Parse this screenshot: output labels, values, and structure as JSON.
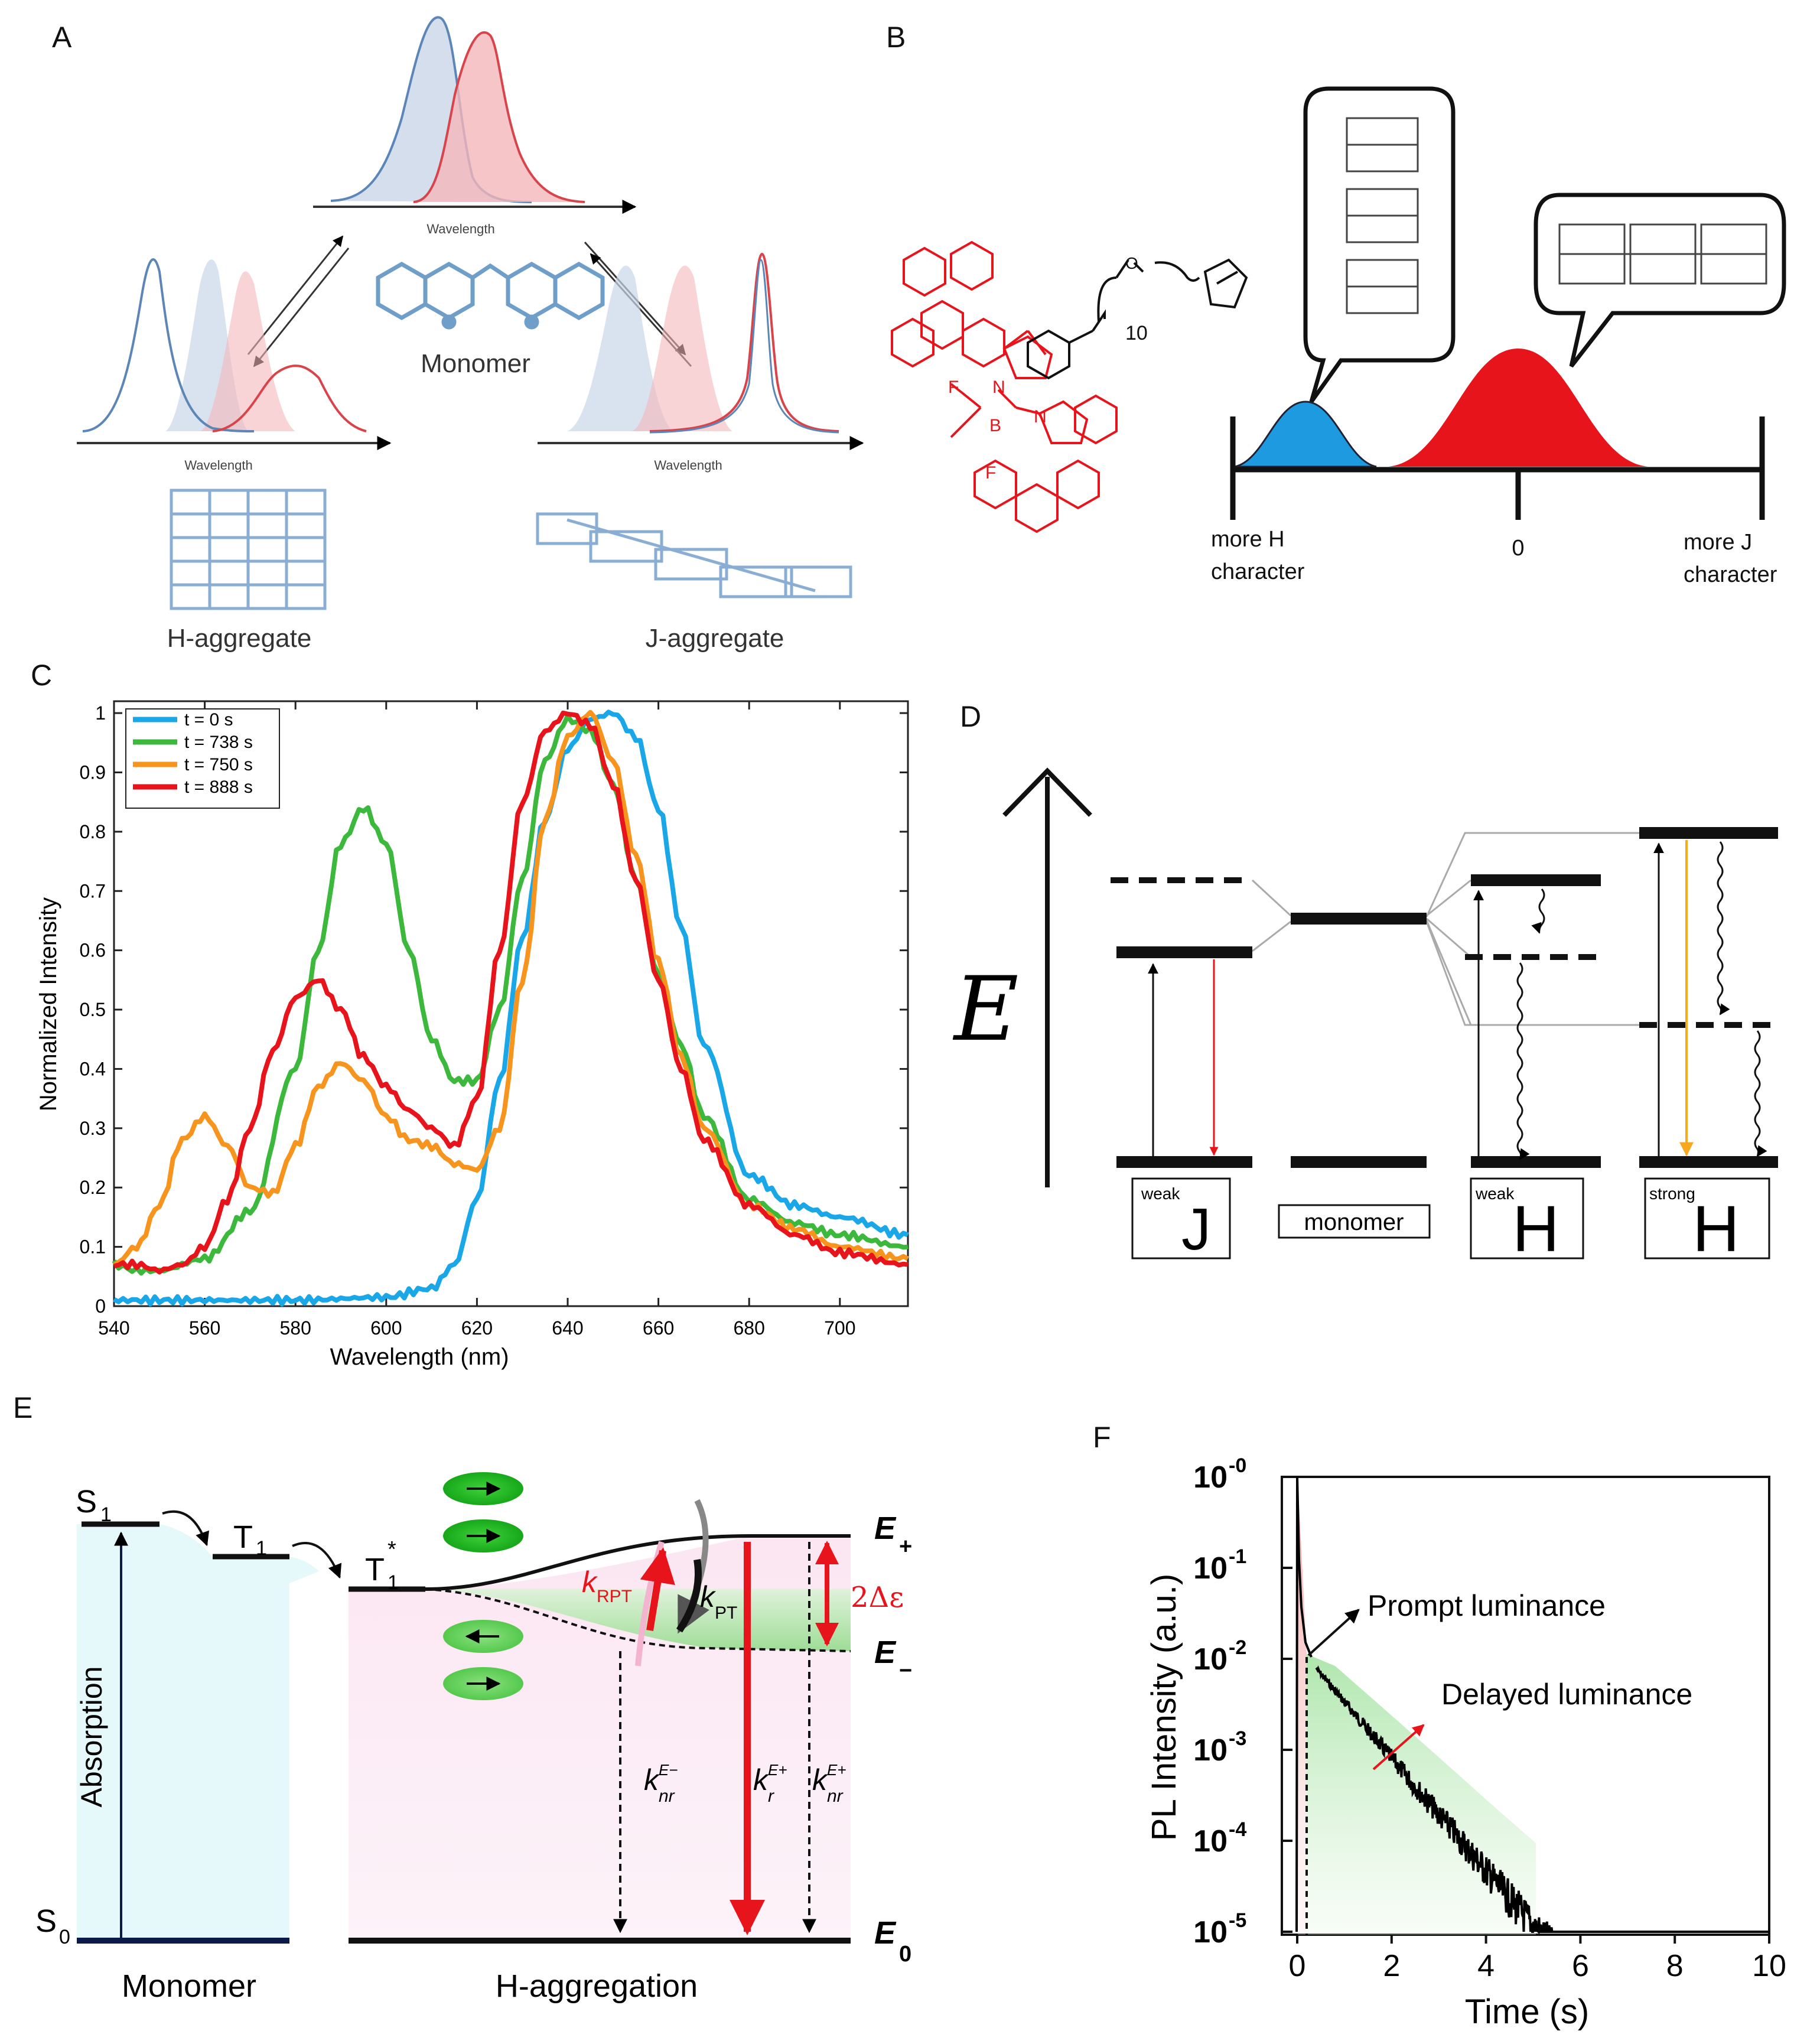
{
  "panel_labels": {
    "a": "A",
    "b": "B",
    "c": "C",
    "d": "D",
    "e": "E",
    "f": "F"
  },
  "panel_a": {
    "axis_label": "Wavelength",
    "monomer": "Monomer",
    "h_aggregate": "H-aggregate",
    "j_aggregate": "J-aggregate"
  },
  "panel_b": {
    "subscript": "10",
    "atoms": {
      "o": "O",
      "n1": "N",
      "n2": "N",
      "b": "B",
      "f1": "F",
      "f2": "F"
    },
    "axis_left_1": "more H",
    "axis_left_2": "character",
    "axis_center": "0",
    "axis_right_1": "more J",
    "axis_right_2": "character"
  },
  "panel_d": {
    "energy": "E",
    "weak": "weak",
    "strong": "strong",
    "j": "J",
    "h": "H",
    "monomer": "monomer"
  },
  "panel_e": {
    "s1": "S",
    "s1_sub": "1",
    "t1": "T",
    "t1_sub": "1",
    "t1star": "T",
    "t1star_sub": "1",
    "t1star_sup": "*",
    "s0": "S",
    "s0_sub": "0",
    "absorption": "Absorption",
    "e_plus": "E",
    "e_plus_sub": "+",
    "e_minus": "E",
    "e_minus_sub": "−",
    "e_zero": "E",
    "e_zero_sub": "0",
    "two_delta": "2Δε",
    "k": "k",
    "rpt": "RPT",
    "pt": "PT",
    "nr": "nr",
    "r": "r",
    "sup_minus": "E−",
    "sup_plus": "E+",
    "monomer": "Monomer",
    "h_aggregation": "H-aggregation"
  },
  "panel_f": {
    "ylabel": "PL Intensity (a.u.)",
    "xlabel": "Time (s)",
    "y_ticks": [
      {
        "exp": "-0",
        "y": 0
      },
      {
        "exp": "-1",
        "y": 1
      },
      {
        "exp": "-2",
        "y": 2
      },
      {
        "exp": "-3",
        "y": 3
      },
      {
        "exp": "-4",
        "y": 4
      },
      {
        "exp": "-5",
        "y": 5
      }
    ],
    "tick_base": "10",
    "x_ticks": [
      "0",
      "2",
      "4",
      "6",
      "8",
      "10"
    ],
    "prompt": "Prompt luminance",
    "delayed": "Delayed luminance"
  },
  "colors": {
    "blue": "#1aa7e8",
    "green": "#3cb93c",
    "orange": "#f7941d",
    "red": "#e8141c",
    "bio_blue": "#6f9ec9",
    "bio_red": "#d9434a"
  },
  "chart_data": {
    "type": "line",
    "title": "",
    "xlabel": "Wavelength (nm)",
    "ylabel": "Normalized Intensity",
    "xlim": [
      540,
      715
    ],
    "ylim": [
      0,
      1.02
    ],
    "x_ticks": [
      540,
      560,
      580,
      600,
      620,
      640,
      660,
      680,
      700
    ],
    "y_ticks": [
      0,
      0.1,
      0.2,
      0.3,
      0.4,
      0.5,
      0.6,
      0.7,
      0.8,
      0.9,
      1
    ],
    "legend_position": "top-left",
    "series": [
      {
        "name": "t = 0 s",
        "color": "#1aa7e8",
        "x": [
          540,
          580,
          600,
          610,
          615,
          620,
          625,
          630,
          635,
          640,
          645,
          650,
          655,
          660,
          665,
          670,
          680,
          690,
          700,
          715
        ],
        "y": [
          0.01,
          0.01,
          0.015,
          0.03,
          0.07,
          0.18,
          0.38,
          0.62,
          0.82,
          0.94,
          0.99,
          1.0,
          0.96,
          0.84,
          0.64,
          0.44,
          0.22,
          0.17,
          0.15,
          0.12
        ]
      },
      {
        "name": "t = 738 s",
        "color": "#3cb93c",
        "x": [
          540,
          545,
          550,
          560,
          570,
          580,
          585,
          590,
          595,
          600,
          605,
          610,
          615,
          620,
          625,
          630,
          635,
          640,
          645,
          650,
          655,
          660,
          665,
          670,
          680,
          690,
          700,
          715
        ],
        "y": [
          0.07,
          0.06,
          0.06,
          0.08,
          0.16,
          0.4,
          0.6,
          0.78,
          0.84,
          0.78,
          0.6,
          0.45,
          0.38,
          0.38,
          0.5,
          0.72,
          0.92,
          0.99,
          0.97,
          0.88,
          0.72,
          0.56,
          0.44,
          0.32,
          0.18,
          0.14,
          0.12,
          0.1
        ]
      },
      {
        "name": "t = 750 s",
        "color": "#f7941d",
        "x": [
          540,
          545,
          550,
          555,
          560,
          565,
          570,
          575,
          580,
          585,
          590,
          595,
          600,
          605,
          610,
          615,
          620,
          625,
          630,
          635,
          640,
          645,
          650,
          655,
          660,
          665,
          670,
          680,
          690,
          700,
          715
        ],
        "y": [
          0.07,
          0.1,
          0.17,
          0.28,
          0.32,
          0.27,
          0.2,
          0.19,
          0.27,
          0.37,
          0.41,
          0.38,
          0.32,
          0.28,
          0.27,
          0.24,
          0.23,
          0.3,
          0.55,
          0.82,
          0.96,
          1.0,
          0.92,
          0.76,
          0.58,
          0.42,
          0.3,
          0.17,
          0.13,
          0.1,
          0.08
        ]
      },
      {
        "name": "t = 888 s",
        "color": "#e8141c",
        "x": [
          540,
          545,
          550,
          555,
          560,
          565,
          570,
          575,
          580,
          585,
          590,
          595,
          600,
          605,
          610,
          615,
          620,
          625,
          630,
          635,
          640,
          645,
          650,
          655,
          660,
          665,
          670,
          680,
          690,
          700,
          715
        ],
        "y": [
          0.07,
          0.07,
          0.06,
          0.07,
          0.1,
          0.18,
          0.3,
          0.43,
          0.52,
          0.55,
          0.5,
          0.42,
          0.37,
          0.33,
          0.3,
          0.27,
          0.35,
          0.6,
          0.85,
          0.97,
          1.0,
          0.98,
          0.88,
          0.72,
          0.55,
          0.4,
          0.28,
          0.17,
          0.12,
          0.09,
          0.07
        ]
      }
    ]
  }
}
